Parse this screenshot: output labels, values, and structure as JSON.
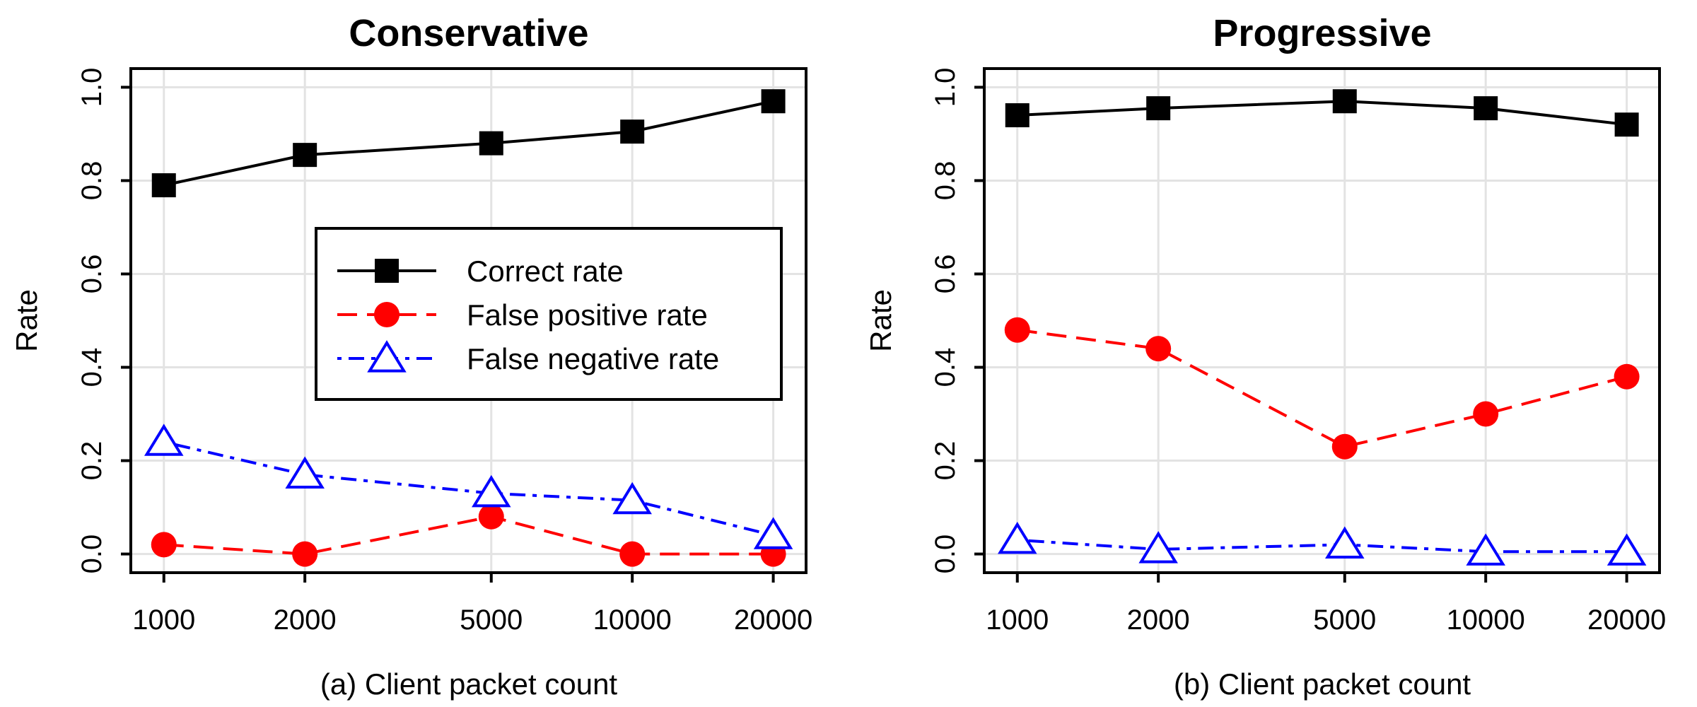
{
  "chart_data": [
    {
      "type": "line",
      "title": "Conservative",
      "xlabel": "(a) Client packet count",
      "ylabel": "Rate",
      "x_scale": "log",
      "categories": [
        "1000",
        "2000",
        "5000",
        "10000",
        "20000"
      ],
      "x": [
        1000,
        2000,
        5000,
        10000,
        20000
      ],
      "xlim": [
        850,
        23500
      ],
      "ylim": [
        -0.04,
        1.04
      ],
      "yticks": [
        "0.0",
        "0.2",
        "0.4",
        "0.6",
        "0.8",
        "1.0"
      ],
      "grid": true,
      "legend": "right-center",
      "series": [
        {
          "name": "Correct rate",
          "color": "#000000",
          "marker": "square",
          "dash": "solid",
          "values": [
            0.79,
            0.855,
            0.88,
            0.905,
            0.97
          ]
        },
        {
          "name": "False positive rate",
          "color": "#ff0000",
          "marker": "circle",
          "dash": "dashed",
          "values": [
            0.02,
            0.0,
            0.08,
            0.0,
            0.0
          ]
        },
        {
          "name": "False negative rate",
          "color": "#0000ff",
          "marker": "triangle-open",
          "dash": "dotdash",
          "values": [
            0.24,
            0.17,
            0.13,
            0.115,
            0.04
          ]
        }
      ]
    },
    {
      "type": "line",
      "title": "Progressive",
      "xlabel": "(b) Client packet count",
      "ylabel": "Rate",
      "x_scale": "log",
      "categories": [
        "1000",
        "2000",
        "5000",
        "10000",
        "20000"
      ],
      "x": [
        1000,
        2000,
        5000,
        10000,
        20000
      ],
      "xlim": [
        850,
        23500
      ],
      "ylim": [
        -0.04,
        1.04
      ],
      "yticks": [
        "0.0",
        "0.2",
        "0.4",
        "0.6",
        "0.8",
        "1.0"
      ],
      "grid": true,
      "legend": "none",
      "series": [
        {
          "name": "Correct rate",
          "color": "#000000",
          "marker": "square",
          "dash": "solid",
          "values": [
            0.94,
            0.955,
            0.97,
            0.955,
            0.92
          ]
        },
        {
          "name": "False positive rate",
          "color": "#ff0000",
          "marker": "circle",
          "dash": "dashed",
          "values": [
            0.48,
            0.44,
            0.23,
            0.3,
            0.38
          ]
        },
        {
          "name": "False negative rate",
          "color": "#0000ff",
          "marker": "triangle-open",
          "dash": "dotdash",
          "values": [
            0.03,
            0.01,
            0.02,
            0.005,
            0.005
          ]
        }
      ]
    }
  ]
}
